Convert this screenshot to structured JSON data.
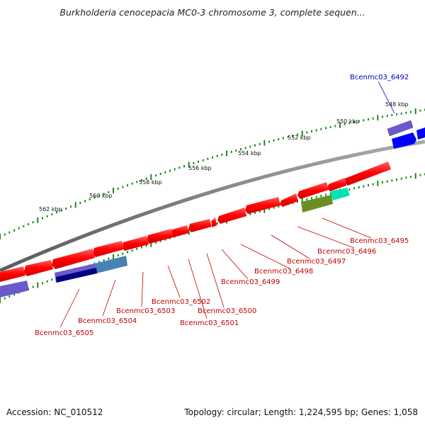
{
  "title": "Burkholderia cenocepacia MC0-3 chromosome 3, complete sequen...",
  "footer": {
    "accession": "Accession: NC_010512",
    "summary": "Topology: circular; Length: 1,224,595 bp; Genes: 1,058"
  },
  "ticks": [
    {
      "label": "548 kbp"
    },
    {
      "label": "550 kbp"
    },
    {
      "label": "552 kbp"
    },
    {
      "label": "554 kbp"
    },
    {
      "label": "556 kbp"
    },
    {
      "label": "558 kbp"
    },
    {
      "label": "560 kbp"
    },
    {
      "label": "562 kbp"
    }
  ],
  "genes": [
    {
      "name": "Bcenmc03_6492",
      "color": "#0000c0"
    },
    {
      "name": "Bcenmc03_6495",
      "color": "#c00000"
    },
    {
      "name": "Bcenmc03_6496",
      "color": "#c00000"
    },
    {
      "name": "Bcenmc03_6497",
      "color": "#c00000"
    },
    {
      "name": "Bcenmc03_6498",
      "color": "#c00000"
    },
    {
      "name": "Bcenmc03_6499",
      "color": "#c00000"
    },
    {
      "name": "Bcenmc03_6500",
      "color": "#c00000"
    },
    {
      "name": "Bcenmc03_6501",
      "color": "#c00000"
    },
    {
      "name": "Bcenmc03_6502",
      "color": "#c00000"
    },
    {
      "name": "Bcenmc03_6503",
      "color": "#c00000"
    },
    {
      "name": "Bcenmc03_6504",
      "color": "#c00000"
    },
    {
      "name": "Bcenmc03_6505",
      "color": "#c00000"
    }
  ],
  "colors": {
    "backbone": "#808080",
    "cds_red": "#ff0000",
    "tick": "#1a8a1a",
    "blue": "#0000ff",
    "slate": "#6a5acd",
    "navy": "#000080",
    "steel": "#4682b4",
    "olive": "#6b8e23",
    "aqua": "#00e5b0"
  }
}
